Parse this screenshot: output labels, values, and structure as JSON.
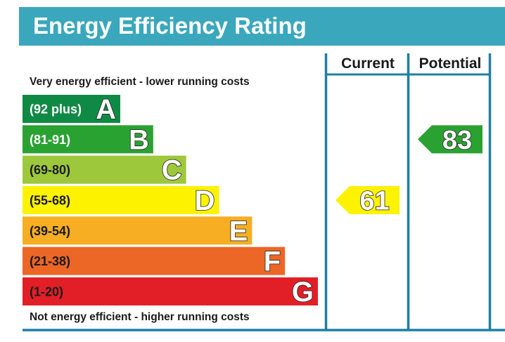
{
  "header": {
    "title": "Energy Efficiency Rating"
  },
  "columns": {
    "current": "Current",
    "potential": "Potential"
  },
  "notes": {
    "top": "Very energy efficient - lower running costs",
    "bottom": "Not energy efficient - higher running costs"
  },
  "chart_data": {
    "type": "bar",
    "bands": [
      {
        "letter": "A",
        "range": "(92 plus)",
        "min": 92,
        "max": 100,
        "color": "#0f8a45",
        "range_color": "#ffffff",
        "letter_color": "#ffffff"
      },
      {
        "letter": "B",
        "range": "(81-91)",
        "min": 81,
        "max": 91,
        "color": "#2aa232",
        "range_color": "#ffffff",
        "letter_color": "#ffffff"
      },
      {
        "letter": "C",
        "range": "(69-80)",
        "min": 69,
        "max": 80,
        "color": "#9dc83c",
        "range_color": "#1a1a1a",
        "letter_color": "#ffffff"
      },
      {
        "letter": "D",
        "range": "(55-68)",
        "min": 55,
        "max": 68,
        "color": "#fdf200",
        "range_color": "#1a1a1a",
        "letter_color": "#ffffff"
      },
      {
        "letter": "E",
        "range": "(39-54)",
        "min": 39,
        "max": 54,
        "color": "#f7ae23",
        "range_color": "#1a1a1a",
        "letter_color": "#ffffff"
      },
      {
        "letter": "F",
        "range": "(21-38)",
        "min": 21,
        "max": 38,
        "color": "#ec6626",
        "range_color": "#1a1a1a",
        "letter_color": "#ffffff"
      },
      {
        "letter": "G",
        "range": "(1-20)",
        "min": 1,
        "max": 20,
        "color": "#e21f27",
        "range_color": "#1a1a1a",
        "letter_color": "#ffffff"
      }
    ],
    "current": {
      "value": 61,
      "band": "D",
      "color": "#fdf200"
    },
    "potential": {
      "value": 83,
      "band": "B",
      "color": "#2aa232"
    }
  },
  "colors": {
    "header_bg": "#3aa7bd",
    "frame": "#1f7fa3"
  }
}
